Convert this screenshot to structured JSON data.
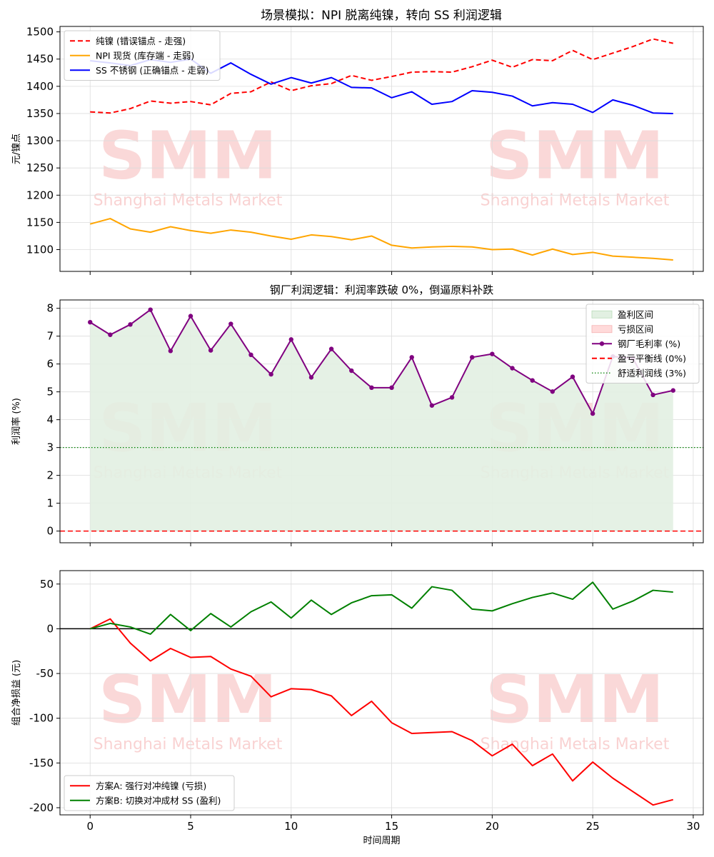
{
  "figure_title": "场景模拟：NPI 脱离纯镍，转向 SS 利润逻辑",
  "watermark": {
    "logo": "SMM",
    "text": "Shanghai Metals Market"
  },
  "chart_data": [
    {
      "type": "line",
      "title": "",
      "xlabel": "",
      "ylabel": "元/镍点",
      "xlim": [
        -1.5,
        30.5
      ],
      "ylim": [
        1060,
        1510
      ],
      "xticks": [
        0,
        5,
        10,
        15,
        20,
        25,
        30
      ],
      "yticks": [
        1100,
        1150,
        1200,
        1250,
        1300,
        1350,
        1400,
        1450,
        1500
      ],
      "grid": true,
      "legend_position": "top-left",
      "x": [
        0,
        1,
        2,
        3,
        4,
        5,
        6,
        7,
        8,
        9,
        10,
        11,
        12,
        13,
        14,
        15,
        16,
        17,
        18,
        19,
        20,
        21,
        22,
        23,
        24,
        25,
        26,
        27,
        28,
        29
      ],
      "series": [
        {
          "name": "纯镍 (错误锚点 - 走强)",
          "color": "#ff0000",
          "style": "dashed",
          "values": [
            1353,
            1351,
            1359,
            1373,
            1369,
            1372,
            1366,
            1387,
            1390,
            1408,
            1392,
            1401,
            1405,
            1420,
            1411,
            1418,
            1426,
            1427,
            1426,
            1436,
            1448,
            1435,
            1449,
            1447,
            1466,
            1449,
            1461,
            1473,
            1487,
            1479
          ]
        },
        {
          "name": "NPI 现货 (库存端 - 走弱)",
          "color": "#ffa500",
          "style": "solid",
          "values": [
            1147,
            1157,
            1138,
            1132,
            1142,
            1135,
            1130,
            1136,
            1132,
            1125,
            1119,
            1127,
            1124,
            1118,
            1125,
            1108,
            1103,
            1105,
            1106,
            1105,
            1100,
            1101,
            1090,
            1101,
            1091,
            1095,
            1088,
            1086,
            1084,
            1081
          ]
        },
        {
          "name": "SS 不锈钢 (正确锚点 - 走弱)",
          "color": "#0000ff",
          "style": "solid",
          "values": [
            1447,
            1443,
            1438,
            1449,
            1444,
            1450,
            1424,
            1443,
            1422,
            1404,
            1416,
            1406,
            1416,
            1398,
            1397,
            1379,
            1390,
            1367,
            1372,
            1392,
            1389,
            1382,
            1364,
            1370,
            1367,
            1352,
            1375,
            1365,
            1351,
            1350
          ]
        }
      ]
    },
    {
      "type": "line",
      "title": "钢厂利润逻辑：利润率跌破 0%，倒逼原料补跌",
      "xlabel": "",
      "ylabel": "利润率 (%)",
      "xlim": [
        -1.5,
        30.5
      ],
      "ylim": [
        -0.42,
        8.3
      ],
      "xticks": [
        0,
        5,
        10,
        15,
        20,
        25,
        30
      ],
      "yticks": [
        0,
        1,
        2,
        3,
        4,
        5,
        6,
        7,
        8
      ],
      "grid": true,
      "legend_position": "top-right",
      "x": [
        0,
        1,
        2,
        3,
        4,
        5,
        6,
        7,
        8,
        9,
        10,
        11,
        12,
        13,
        14,
        15,
        16,
        17,
        18,
        19,
        20,
        21,
        22,
        23,
        24,
        25,
        26,
        27,
        28,
        29
      ],
      "fill_labels": {
        "profit": "盈利区间",
        "loss": "亏损区间"
      },
      "fill_colors": {
        "profit": "#e2f0e2",
        "loss": "#ffdada"
      },
      "series": [
        {
          "name": "钢厂毛利率 (%)",
          "color": "#800080",
          "style": "solid-marker",
          "values": [
            7.5,
            7.05,
            7.42,
            7.95,
            6.47,
            7.72,
            6.49,
            7.44,
            6.33,
            5.63,
            6.88,
            5.52,
            6.54,
            5.76,
            5.15,
            5.15,
            6.24,
            4.51,
            4.8,
            6.24,
            6.36,
            5.85,
            5.41,
            5.01,
            5.54,
            4.22,
            6.27,
            6.2,
            4.89,
            5.05
          ]
        }
      ],
      "hlines": [
        {
          "name": "盈亏平衡线 (0%)",
          "y": 0,
          "color": "#ff0000",
          "style": "dashed"
        },
        {
          "name": "舒适利润线 (3%)",
          "y": 3,
          "color": "#008000",
          "style": "dotted"
        }
      ]
    },
    {
      "type": "line",
      "title": "",
      "xlabel": "时间周期",
      "ylabel": "组合净损益 (元)",
      "xlim": [
        -1.5,
        30.5
      ],
      "ylim": [
        -208,
        65
      ],
      "xticks": [
        0,
        5,
        10,
        15,
        20,
        25,
        30
      ],
      "yticks": [
        -200,
        -150,
        -100,
        -50,
        0,
        50
      ],
      "grid": true,
      "legend_position": "bottom-left",
      "x": [
        0,
        1,
        2,
        3,
        4,
        5,
        6,
        7,
        8,
        9,
        10,
        11,
        12,
        13,
        14,
        15,
        16,
        17,
        18,
        19,
        20,
        21,
        22,
        23,
        24,
        25,
        26,
        27,
        28,
        29
      ],
      "hlines": [
        {
          "y": 0,
          "color": "#000000",
          "style": "solid"
        }
      ],
      "series": [
        {
          "name": "方案A: 强行对冲纯镍 (亏损)",
          "color": "#ff0000",
          "style": "solid",
          "values": [
            0,
            11,
            -16,
            -36,
            -22,
            -32,
            -31,
            -45,
            -53,
            -76,
            -67,
            -68,
            -75,
            -97,
            -81,
            -105,
            -117,
            -116,
            -115,
            -125,
            -142,
            -129,
            -153,
            -140,
            -170,
            -149,
            -167,
            -182,
            -197,
            -191
          ]
        },
        {
          "name": "方案B: 切换对冲成材 SS (盈利)",
          "color": "#008000",
          "style": "solid",
          "values": [
            0,
            6,
            2,
            -6,
            16,
            -2,
            17,
            2,
            19,
            30,
            12,
            32,
            16,
            29,
            37,
            38,
            23,
            47,
            43,
            22,
            20,
            28,
            35,
            40,
            33,
            52,
            22,
            31,
            43,
            41
          ]
        }
      ]
    }
  ]
}
